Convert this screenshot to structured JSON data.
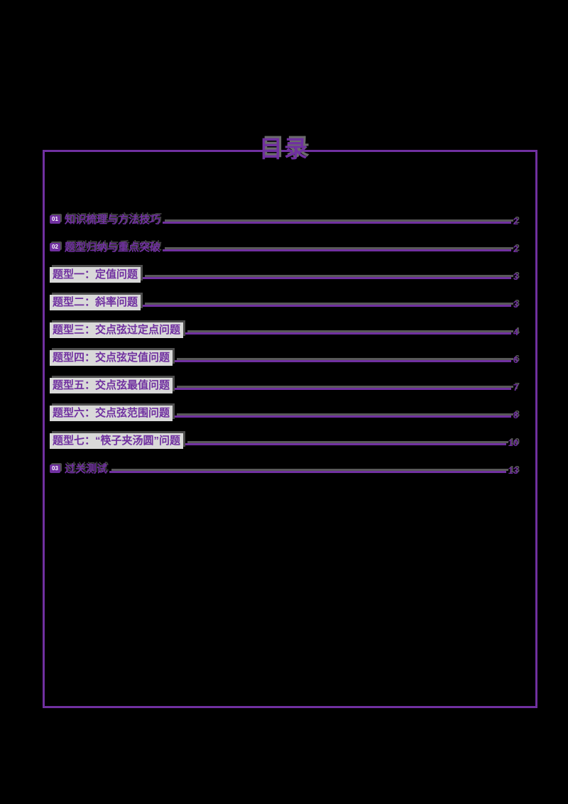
{
  "page": {
    "title": "目录"
  },
  "colors": {
    "background": "#000000",
    "accent_purple": "#7030a0",
    "highlight_gray": "#d9d9d9",
    "shadow_gray": "#595959"
  },
  "toc": {
    "entries": [
      {
        "badge": "01",
        "label": "知识梳理与方法技巧",
        "page": "2",
        "highlight": false
      },
      {
        "badge": "02",
        "label": "题型归纳与重点突破",
        "page": "2",
        "highlight": false
      },
      {
        "badge": "",
        "label": "题型一：定值问题",
        "page": "3",
        "highlight": true
      },
      {
        "badge": "",
        "label": "题型二：斜率问题",
        "page": "3",
        "highlight": true
      },
      {
        "badge": "",
        "label": "题型三：交点弦过定点问题",
        "page": "4",
        "highlight": true
      },
      {
        "badge": "",
        "label": "题型四：交点弦定值问题",
        "page": "6",
        "highlight": true
      },
      {
        "badge": "",
        "label": "题型五：交点弦最值问题",
        "page": "7",
        "highlight": true
      },
      {
        "badge": "",
        "label": "题型六：交点弦范围问题",
        "page": "8",
        "highlight": true
      },
      {
        "badge": "",
        "label": "题型七：“筷子夹汤圆”问题",
        "page": "10",
        "highlight": true
      },
      {
        "badge": "03",
        "label": "过关测试",
        "page": "13",
        "highlight": false
      }
    ]
  }
}
